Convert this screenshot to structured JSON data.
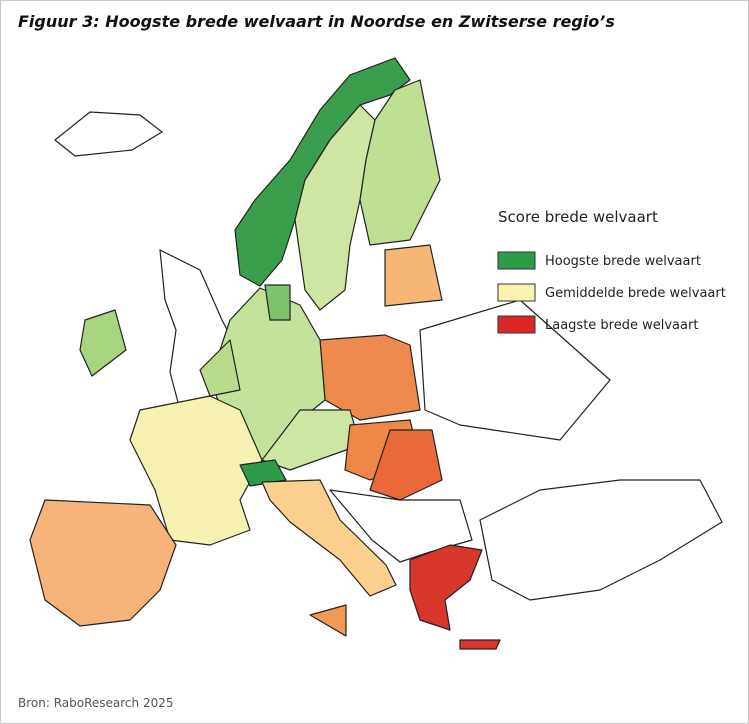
{
  "header": {
    "title": "Figuur 3: Hoogste brede welvaart in Noordse en Zwitserse regio’s"
  },
  "legend": {
    "title": "Score brede welvaart",
    "items": [
      {
        "label": "Hoogste brede welvaart",
        "color": "#2e9b48"
      },
      {
        "label": "Gemiddelde brede welvaart",
        "color": "#fdf3b0"
      },
      {
        "label": "Laagste brede welvaart",
        "color": "#dc2626"
      }
    ]
  },
  "source": "Bron: RaboResearch 2025"
}
